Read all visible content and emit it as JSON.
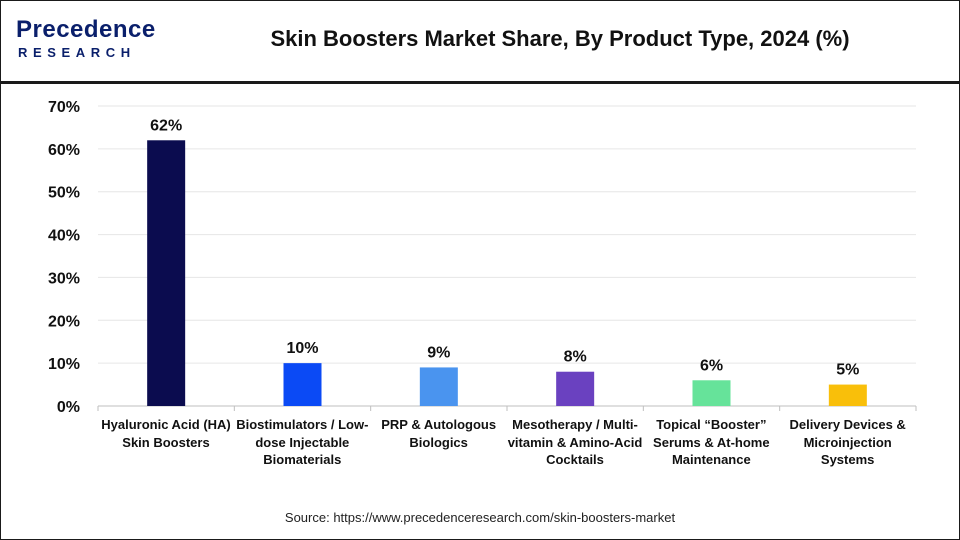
{
  "brand": {
    "name_main": "Precedence",
    "name_sub": "RESEARCH"
  },
  "source_text": "Source: https://www.precedenceresearch.com/skin-boosters-market",
  "colors": {
    "brand": "#0a1f6b",
    "gridline": "#e6e6e6",
    "axis": "#bfbfbf"
  },
  "chart_data": {
    "type": "bar",
    "title": "Skin Boosters Market Share, By Product Type, 2024 (%)",
    "categories": [
      "Hyaluronic Acid (HA) Skin Boosters",
      "Biostimulators / Low-dose Injectable Biomaterials",
      "PRP & Autologous Biologics",
      "Mesotherapy / Multi-vitamin & Amino-Acid Cocktails",
      "Topical “Booster” Serums & At-home Maintenance",
      "Delivery Devices & Microinjection Systems"
    ],
    "values": [
      62,
      10,
      9,
      8,
      6,
      5
    ],
    "data_labels": [
      "62%",
      "10%",
      "9%",
      "8%",
      "6%",
      "5%"
    ],
    "bar_colors": [
      "#0b0c4f",
      "#0b4af5",
      "#4a94ef",
      "#6a41c0",
      "#66e39a",
      "#f9bf0a"
    ],
    "ylim": [
      0,
      70
    ],
    "yticks": [
      0,
      10,
      20,
      30,
      40,
      50,
      60,
      70
    ],
    "ytick_labels": [
      "0%",
      "10%",
      "20%",
      "30%",
      "40%",
      "50%",
      "60%",
      "70%"
    ],
    "grid": true,
    "legend": "none",
    "xlabel": "",
    "ylabel": ""
  }
}
